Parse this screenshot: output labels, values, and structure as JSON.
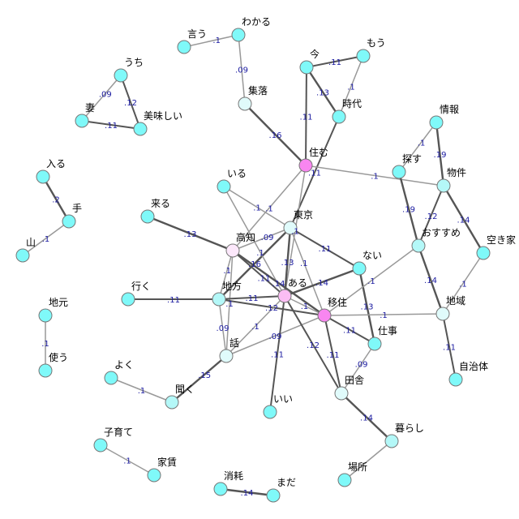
{
  "colors": {
    "default": "#7ff9f9",
    "pink_strong": "#f886f0",
    "pink_mid": "#fbbdf4",
    "pink_light": "#fce8fb",
    "cyan_pale": "#e0fbfb",
    "cyan_light": "#b4f8f8",
    "weight_text": "#1a1aa0"
  },
  "nodes": [
    {
      "id": "言う",
      "color": "default"
    },
    {
      "id": "わかる",
      "color": "default"
    },
    {
      "id": "集落",
      "color": "cyan_pale"
    },
    {
      "id": "今",
      "color": "default"
    },
    {
      "id": "もう",
      "color": "default"
    },
    {
      "id": "時代",
      "color": "default"
    },
    {
      "id": "住む",
      "color": "pink_strong"
    },
    {
      "id": "うち",
      "color": "default"
    },
    {
      "id": "妻",
      "color": "default"
    },
    {
      "id": "美味しい",
      "color": "default"
    },
    {
      "id": "入る",
      "color": "default"
    },
    {
      "id": "手",
      "color": "default"
    },
    {
      "id": "山",
      "color": "default"
    },
    {
      "id": "来る",
      "color": "default"
    },
    {
      "id": "いる",
      "color": "default"
    },
    {
      "id": "高知",
      "color": "pink_light"
    },
    {
      "id": "東京",
      "color": "cyan_pale"
    },
    {
      "id": "ない",
      "color": "default"
    },
    {
      "id": "ある",
      "color": "pink_mid"
    },
    {
      "id": "移住",
      "color": "pink_strong"
    },
    {
      "id": "地方",
      "color": "cyan_light"
    },
    {
      "id": "行く",
      "color": "default"
    },
    {
      "id": "話",
      "color": "cyan_pale"
    },
    {
      "id": "仕事",
      "color": "default"
    },
    {
      "id": "田舎",
      "color": "cyan_pale"
    },
    {
      "id": "いい",
      "color": "default"
    },
    {
      "id": "よく",
      "color": "default"
    },
    {
      "id": "聞く",
      "color": "cyan_light"
    },
    {
      "id": "地元",
      "color": "default"
    },
    {
      "id": "使う",
      "color": "default"
    },
    {
      "id": "子育て",
      "color": "default"
    },
    {
      "id": "家賃",
      "color": "default"
    },
    {
      "id": "消耗",
      "color": "default"
    },
    {
      "id": "まだ",
      "color": "default"
    },
    {
      "id": "暮らし",
      "color": "cyan_light"
    },
    {
      "id": "場所",
      "color": "default"
    },
    {
      "id": "情報",
      "color": "default"
    },
    {
      "id": "探す",
      "color": "default"
    },
    {
      "id": "物件",
      "color": "cyan_light"
    },
    {
      "id": "おすすめ",
      "color": "cyan_light"
    },
    {
      "id": "空き家",
      "color": "default"
    },
    {
      "id": "地域",
      "color": "cyan_pale"
    },
    {
      "id": "自治体",
      "color": "default"
    }
  ],
  "edges": [
    [
      "言う",
      "わかる",
      ".1"
    ],
    [
      "わかる",
      "集落",
      ".09"
    ],
    [
      "集落",
      "住む",
      ".16"
    ],
    [
      "今",
      "もう",
      ".11"
    ],
    [
      "もう",
      "時代",
      ".1"
    ],
    [
      "今",
      "時代",
      ".13"
    ],
    [
      "今",
      "住む",
      ".11"
    ],
    [
      "時代",
      "東京",
      ".11"
    ],
    [
      "住む",
      "ある",
      ".1"
    ],
    [
      "住む",
      "高知",
      ".1"
    ],
    [
      "住む",
      "物件",
      ".1"
    ],
    [
      "東京",
      "移住",
      ".1"
    ],
    [
      "東京",
      "ある",
      ".13"
    ],
    [
      "東京",
      "ない",
      ".11"
    ],
    [
      "東京",
      "いる",
      ".1"
    ],
    [
      "東京",
      "高知",
      ".09"
    ],
    [
      "地方",
      "東京",
      ".16"
    ],
    [
      "いる",
      "ある",
      ".1"
    ],
    [
      "来る",
      "高知",
      ".13"
    ],
    [
      "高知",
      "ある",
      ".11"
    ],
    [
      "高知",
      "移住",
      ".14"
    ],
    [
      "高知",
      "地方",
      ".1"
    ],
    [
      "地方",
      "話",
      ".09"
    ],
    [
      "高知",
      "話",
      ".1"
    ],
    [
      "ない",
      "ある",
      ".14"
    ],
    [
      "ない",
      "仕事",
      ".13"
    ],
    [
      "移住",
      "おすすめ",
      ".1"
    ],
    [
      "移住",
      "地域",
      ".1"
    ],
    [
      "移住",
      "仕事",
      ".11"
    ],
    [
      "移住",
      "田舎",
      ".11"
    ],
    [
      "移住",
      "話",
      ".09"
    ],
    [
      "移住",
      "ある",
      ".1"
    ],
    [
      "地方",
      "ある",
      ".11"
    ],
    [
      "地方",
      "移住",
      ".12"
    ],
    [
      "行く",
      "地方",
      ".11"
    ],
    [
      "ある",
      "いい",
      ".11"
    ],
    [
      "ある",
      "田舎",
      ".12"
    ],
    [
      "話",
      "ある",
      ".1"
    ],
    [
      "話",
      "聞く",
      ".15"
    ],
    [
      "よく",
      "聞く",
      ".1"
    ],
    [
      "仕事",
      "田舎",
      ".09"
    ],
    [
      "田舎",
      "暮らし",
      ".14"
    ],
    [
      "暮らし",
      "場所",
      ""
    ],
    [
      "情報",
      "探す",
      ".1"
    ],
    [
      "情報",
      "物件",
      ".19"
    ],
    [
      "探す",
      "おすすめ",
      ".19"
    ],
    [
      "物件",
      "おすすめ",
      ".12"
    ],
    [
      "物件",
      "空き家",
      ".14"
    ],
    [
      "空き家",
      "地域",
      ".1"
    ],
    [
      "おすすめ",
      "地域",
      ".14"
    ],
    [
      "地域",
      "自治体",
      ".11"
    ],
    [
      "うち",
      "妻",
      ".09"
    ],
    [
      "うち",
      "美味しい",
      ".12"
    ],
    [
      "妻",
      "美味しい",
      ".11"
    ],
    [
      "入る",
      "手",
      ".2"
    ],
    [
      "手",
      "山",
      ".1"
    ],
    [
      "地元",
      "使う",
      ".1"
    ],
    [
      "子育て",
      "家賃",
      ".1"
    ],
    [
      "消耗",
      "まだ",
      ".14"
    ]
  ]
}
